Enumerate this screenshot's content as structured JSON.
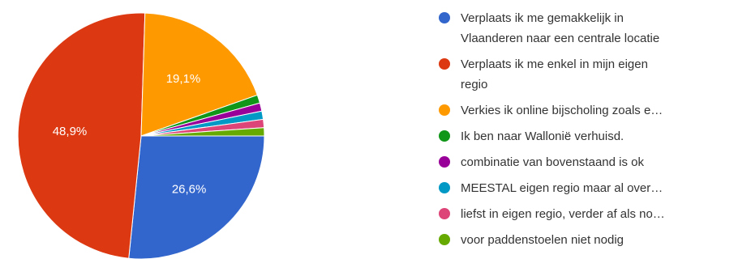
{
  "chart_data": {
    "type": "pie",
    "title": "",
    "legend_position": "right",
    "slices": [
      {
        "label": "Verplaats ik me gemakkelijk in Vlaanderen naar een centrale locatie",
        "value": 26.6,
        "color": "#3366cc",
        "display": "26,6%"
      },
      {
        "label": "Verplaats ik me enkel in mijn eigen regio",
        "value": 48.9,
        "color": "#dc3912",
        "display": "48,9%"
      },
      {
        "label": "Verkies ik online bijscholing zoals e…",
        "value": 19.1,
        "color": "#ff9900",
        "display": "19,1%"
      },
      {
        "label": "Ik ben naar Wallonië verhuisd.",
        "value": 1.08,
        "color": "#109618",
        "display": ""
      },
      {
        "label": "combinatie van bovenstaand is ok",
        "value": 1.08,
        "color": "#990099",
        "display": ""
      },
      {
        "label": "MEESTAL eigen regio maar al over…",
        "value": 1.08,
        "color": "#0099c6",
        "display": ""
      },
      {
        "label": "liefst in eigen regio, verder af als no…",
        "value": 1.08,
        "color": "#dd4477",
        "display": ""
      },
      {
        "label": "voor paddenstoelen niet nodig",
        "value": 1.08,
        "color": "#66aa00",
        "display": ""
      }
    ],
    "legend_lines": [
      [
        "Verplaats ik me gemakkelijk in",
        "Vlaanderen naar een centrale locatie"
      ],
      [
        "Verplaats ik me enkel in mijn eigen",
        "regio"
      ],
      [
        "Verkies ik online bijscholing zoals e…"
      ],
      [
        "Ik ben naar Wallonië verhuisd."
      ],
      [
        "combinatie van bovenstaand is ok"
      ],
      [
        "MEESTAL eigen regio maar al over…"
      ],
      [
        "liefst in eigen regio, verder af als no…"
      ],
      [
        "voor paddenstoelen niet nodig"
      ]
    ]
  }
}
